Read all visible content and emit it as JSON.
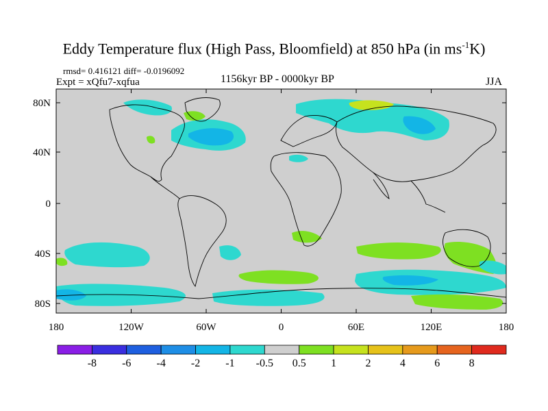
{
  "title": {
    "main": "Eddy Temperature flux (High Pass, Bloomfield) at 850 hPa (in ms",
    "sup": "-1",
    "tail": "K)"
  },
  "subtitle": {
    "stats": "rmsd= 0.416121 diff= -0.0196092",
    "experiment": "Expt = xQfu7-xqfua",
    "period": "1156kyr BP - 0000kyr BP",
    "season": "JJA"
  },
  "axes": {
    "lat_labels": [
      "80N",
      "40N",
      "0",
      "40S",
      "80S"
    ],
    "lon_labels": [
      "180",
      "120W",
      "60W",
      "0",
      "60E",
      "120E",
      "180"
    ]
  },
  "colorbar": {
    "labels": [
      "-8",
      "-6",
      "-4",
      "-2",
      "-1",
      "-0.5",
      "0.5",
      "1",
      "2",
      "4",
      "6",
      "8"
    ],
    "colors": [
      "#8a1ee6",
      "#3a2ee0",
      "#1e5fe0",
      "#1e8ee6",
      "#13b5e6",
      "#2ed8cf",
      "#cfcfcf",
      "#7ee022",
      "#c6e21e",
      "#e6c21a",
      "#e69a1c",
      "#e6641e",
      "#e02a1e"
    ]
  },
  "map": {
    "background": "#cfcfcf",
    "coastline_color": "#000000"
  }
}
